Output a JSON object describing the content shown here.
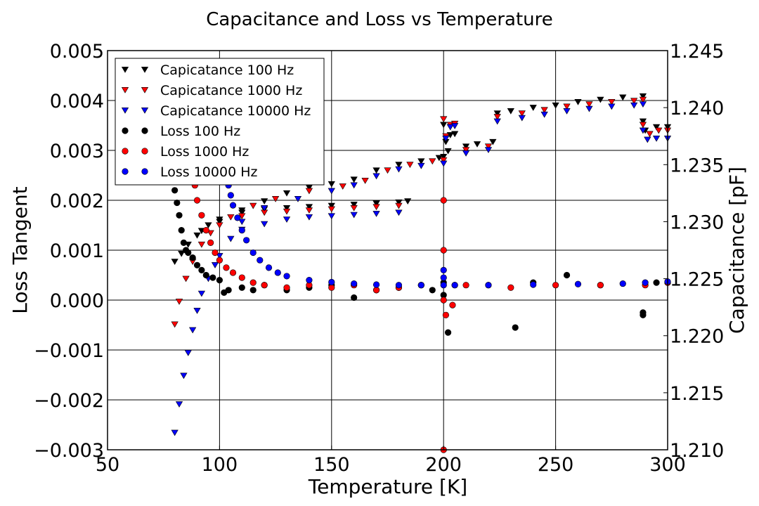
{
  "chart_data": {
    "type": "scatter",
    "title": "Capacitance and Loss vs Temperature",
    "xlabel": "Temperature [K]",
    "ylabel_left": "Loss Tangent",
    "ylabel_right": "Capacitance [pF]",
    "xlim": [
      50,
      300
    ],
    "ylim_left": [
      -0.003,
      0.005
    ],
    "ylim_right": [
      1.21,
      1.245
    ],
    "x_ticks": [
      "50",
      "100",
      "150",
      "200",
      "250",
      "300"
    ],
    "y_ticks_left": [
      "−0.003",
      "−0.002",
      "−0.001",
      "0.000",
      "0.001",
      "0.002",
      "0.003",
      "0.004",
      "0.005"
    ],
    "y_ticks_right": [
      "1.210",
      "1.215",
      "1.220",
      "1.225",
      "1.230",
      "1.235",
      "1.240",
      "1.245"
    ],
    "grid": true,
    "legend_position": "top-left",
    "series": [
      {
        "name": "Capicatance 100 Hz",
        "axis": "right",
        "marker": "triangle-down",
        "color": "#000000",
        "points": [
          [
            80,
            1.2265
          ],
          [
            83,
            1.2272
          ],
          [
            86,
            1.228
          ],
          [
            90,
            1.2288
          ],
          [
            95,
            1.2297
          ],
          [
            100,
            1.2302
          ],
          [
            110,
            1.2308
          ],
          [
            120,
            1.2311
          ],
          [
            130,
            1.2312
          ],
          [
            140,
            1.2313
          ],
          [
            150,
            1.2314
          ],
          [
            160,
            1.2315
          ],
          [
            170,
            1.2316
          ],
          [
            180,
            1.2317
          ],
          [
            184,
            1.2318
          ],
          [
            92,
            1.2292
          ],
          [
            100,
            1.23
          ],
          [
            110,
            1.231
          ],
          [
            120,
            1.2318
          ],
          [
            130,
            1.2325
          ],
          [
            140,
            1.233
          ],
          [
            150,
            1.2333
          ],
          [
            160,
            1.2337
          ],
          [
            170,
            1.2345
          ],
          [
            180,
            1.235
          ],
          [
            190,
            1.2353
          ],
          [
            198,
            1.2356
          ],
          [
            200,
            1.2357
          ],
          [
            200,
            1.2385
          ],
          [
            201,
            1.237
          ],
          [
            202,
            1.2362
          ],
          [
            203,
            1.2376
          ],
          [
            205,
            1.2377
          ],
          [
            210,
            1.2366
          ],
          [
            215,
            1.2368
          ],
          [
            222,
            1.237
          ],
          [
            224,
            1.2395
          ],
          [
            230,
            1.2397
          ],
          [
            240,
            1.24
          ],
          [
            250,
            1.2402
          ],
          [
            260,
            1.2405
          ],
          [
            270,
            1.2407
          ],
          [
            280,
            1.2409
          ],
          [
            289,
            1.241
          ],
          [
            289,
            1.2388
          ],
          [
            290,
            1.238
          ],
          [
            295,
            1.2383
          ],
          [
            300,
            1.2383
          ]
        ]
      },
      {
        "name": "Capicatance 1000 Hz",
        "axis": "right",
        "marker": "triangle-down",
        "color": "#ff0000",
        "points": [
          [
            80,
            1.221
          ],
          [
            82,
            1.223
          ],
          [
            85,
            1.225
          ],
          [
            88,
            1.2265
          ],
          [
            92,
            1.228
          ],
          [
            96,
            1.229
          ],
          [
            100,
            1.2297
          ],
          [
            110,
            1.2305
          ],
          [
            120,
            1.2308
          ],
          [
            130,
            1.2309
          ],
          [
            140,
            1.231
          ],
          [
            150,
            1.2311
          ],
          [
            160,
            1.2312
          ],
          [
            170,
            1.2313
          ],
          [
            180,
            1.2314
          ],
          [
            105,
            1.2304
          ],
          [
            115,
            1.2314
          ],
          [
            125,
            1.232
          ],
          [
            140,
            1.2327
          ],
          [
            155,
            1.2331
          ],
          [
            165,
            1.2336
          ],
          [
            175,
            1.2345
          ],
          [
            185,
            1.235
          ],
          [
            195,
            1.2353
          ],
          [
            200,
            1.2354
          ],
          [
            200,
            1.239
          ],
          [
            201,
            1.2375
          ],
          [
            203,
            1.2385
          ],
          [
            205,
            1.2386
          ],
          [
            210,
            1.2363
          ],
          [
            220,
            1.2366
          ],
          [
            224,
            1.2392
          ],
          [
            235,
            1.2395
          ],
          [
            245,
            1.2398
          ],
          [
            255,
            1.2401
          ],
          [
            265,
            1.2403
          ],
          [
            275,
            1.2405
          ],
          [
            285,
            1.2406
          ],
          [
            289,
            1.2407
          ],
          [
            289,
            1.2385
          ],
          [
            292,
            1.2377
          ],
          [
            296,
            1.238
          ],
          [
            300,
            1.238
          ]
        ]
      },
      {
        "name": "Capicatance 10000 Hz",
        "axis": "right",
        "marker": "triangle-down",
        "color": "#0000ff",
        "points": [
          [
            80,
            1.2115
          ],
          [
            82,
            1.214
          ],
          [
            84,
            1.2165
          ],
          [
            86,
            1.2185
          ],
          [
            88,
            1.2205
          ],
          [
            90,
            1.2222
          ],
          [
            92,
            1.2237
          ],
          [
            95,
            1.225
          ],
          [
            98,
            1.2262
          ],
          [
            100,
            1.227
          ],
          [
            105,
            1.2285
          ],
          [
            110,
            1.2293
          ],
          [
            120,
            1.2298
          ],
          [
            130,
            1.2302
          ],
          [
            140,
            1.2304
          ],
          [
            150,
            1.2305
          ],
          [
            160,
            1.2306
          ],
          [
            170,
            1.2307
          ],
          [
            180,
            1.2308
          ],
          [
            110,
            1.23
          ],
          [
            120,
            1.2312
          ],
          [
            135,
            1.232
          ],
          [
            150,
            1.2327
          ],
          [
            160,
            1.2332
          ],
          [
            170,
            1.234
          ],
          [
            180,
            1.2346
          ],
          [
            190,
            1.2349
          ],
          [
            200,
            1.2351
          ],
          [
            201,
            1.2373
          ],
          [
            203,
            1.2383
          ],
          [
            205,
            1.2384
          ],
          [
            210,
            1.236
          ],
          [
            220,
            1.2363
          ],
          [
            224,
            1.2388
          ],
          [
            235,
            1.2391
          ],
          [
            245,
            1.2394
          ],
          [
            255,
            1.2397
          ],
          [
            265,
            1.2399
          ],
          [
            275,
            1.2401
          ],
          [
            285,
            1.2402
          ],
          [
            289,
            1.2403
          ],
          [
            289,
            1.238
          ],
          [
            291,
            1.2372
          ],
          [
            295,
            1.2373
          ],
          [
            300,
            1.2373
          ]
        ]
      },
      {
        "name": "Loss 100 Hz",
        "axis": "left",
        "marker": "circle",
        "color": "#000000",
        "points": [
          [
            80,
            0.0022
          ],
          [
            81,
            0.00195
          ],
          [
            82,
            0.0017
          ],
          [
            83,
            0.0014
          ],
          [
            84,
            0.00115
          ],
          [
            85,
            0.001
          ],
          [
            86,
            0.00095
          ],
          [
            88,
            0.00085
          ],
          [
            90,
            0.0007
          ],
          [
            92,
            0.0006
          ],
          [
            94,
            0.0005
          ],
          [
            97,
            0.00045
          ],
          [
            100,
            0.0004
          ],
          [
            102,
            0.00015
          ],
          [
            104,
            0.0002
          ],
          [
            110,
            0.00025
          ],
          [
            115,
            0.0002
          ],
          [
            120,
            0.0003
          ],
          [
            130,
            0.0002
          ],
          [
            140,
            0.00025
          ],
          [
            150,
            0.0003
          ],
          [
            160,
            5e-05
          ],
          [
            170,
            0.0002
          ],
          [
            180,
            0.00025
          ],
          [
            190,
            0.0003
          ],
          [
            195,
            0.0002
          ],
          [
            200,
            0.00035
          ],
          [
            200,
            0.0001
          ],
          [
            202,
            -0.00065
          ],
          [
            205,
            0.0003
          ],
          [
            220,
            0.0003
          ],
          [
            232,
            -0.00055
          ],
          [
            240,
            0.00035
          ],
          [
            255,
            0.0005
          ],
          [
            270,
            0.0003
          ],
          [
            289,
            -0.00025
          ],
          [
            289,
            -0.0003
          ],
          [
            295,
            0.00035
          ],
          [
            300,
            0.00035
          ]
        ]
      },
      {
        "name": "Loss 1000 Hz",
        "axis": "left",
        "marker": "circle",
        "color": "#ff0000",
        "points": [
          [
            88,
            0.0027
          ],
          [
            89,
            0.0023
          ],
          [
            90,
            0.002
          ],
          [
            92,
            0.0017
          ],
          [
            94,
            0.0014
          ],
          [
            96,
            0.00115
          ],
          [
            98,
            0.00095
          ],
          [
            100,
            0.0008
          ],
          [
            103,
            0.00065
          ],
          [
            106,
            0.00055
          ],
          [
            110,
            0.00045
          ],
          [
            115,
            0.00035
          ],
          [
            120,
            0.0003
          ],
          [
            130,
            0.00025
          ],
          [
            140,
            0.0003
          ],
          [
            150,
            0.00025
          ],
          [
            160,
            0.0003
          ],
          [
            170,
            0.0002
          ],
          [
            180,
            0.00025
          ],
          [
            190,
            0.0003
          ],
          [
            200,
            0.0
          ],
          [
            200,
            0.002
          ],
          [
            200,
            0.001
          ],
          [
            200,
            -0.003
          ],
          [
            201,
            -0.0003
          ],
          [
            204,
            -0.0001
          ],
          [
            210,
            0.0003
          ],
          [
            230,
            0.00025
          ],
          [
            250,
            0.0003
          ],
          [
            270,
            0.0003
          ],
          [
            290,
            0.0003
          ],
          [
            300,
            0.00035
          ]
        ]
      },
      {
        "name": "Loss 10000 Hz",
        "axis": "left",
        "marker": "circle",
        "color": "#0000ff",
        "points": [
          [
            102,
            0.0028
          ],
          [
            103,
            0.00255
          ],
          [
            104,
            0.0023
          ],
          [
            105,
            0.0021
          ],
          [
            106,
            0.0019
          ],
          [
            108,
            0.00165
          ],
          [
            110,
            0.0014
          ],
          [
            112,
            0.0012
          ],
          [
            115,
            0.00095
          ],
          [
            118,
            0.0008
          ],
          [
            122,
            0.00065
          ],
          [
            126,
            0.00055
          ],
          [
            130,
            0.00048
          ],
          [
            140,
            0.0004
          ],
          [
            150,
            0.00036
          ],
          [
            160,
            0.00033
          ],
          [
            170,
            0.00031
          ],
          [
            180,
            0.0003
          ],
          [
            190,
            0.0003
          ],
          [
            200,
            0.0003
          ],
          [
            200,
            0.0006
          ],
          [
            200,
            0.00045
          ],
          [
            205,
            0.0003
          ],
          [
            220,
            0.0003
          ],
          [
            240,
            0.00031
          ],
          [
            260,
            0.00032
          ],
          [
            280,
            0.00033
          ],
          [
            290,
            0.00035
          ],
          [
            300,
            0.00037
          ]
        ]
      }
    ]
  }
}
